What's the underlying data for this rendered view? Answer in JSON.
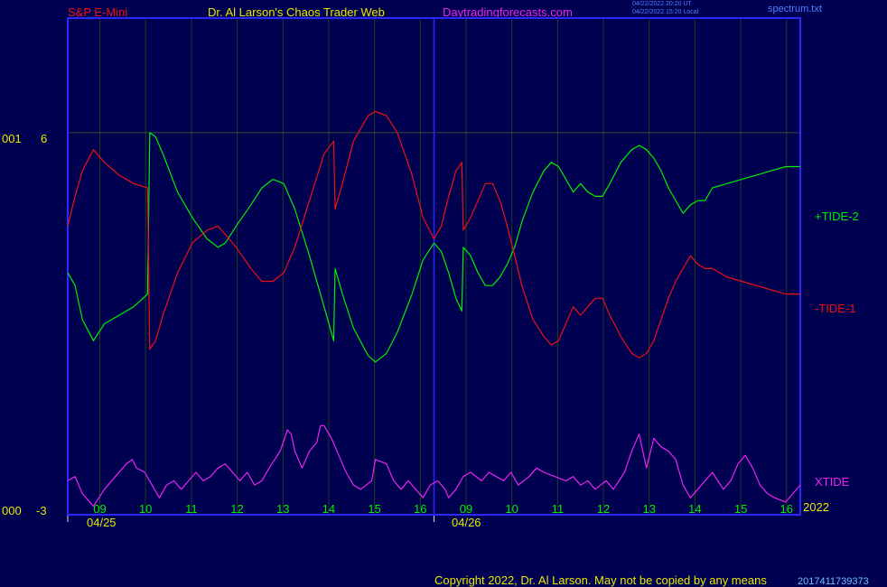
{
  "header": {
    "market": "S&P E-Mini",
    "author": "Dr. Al Larson's Chaos Trader Web",
    "site": "Daytradingforecasts.com",
    "stamp_ut": "04/22/2022 20:20 UT",
    "stamp_local": "04/22/2022 15:20 Local",
    "file": "spectrum.txt"
  },
  "footer": {
    "copyright": "Copyright 2022, Dr. Al Larson. May not be copied by any means",
    "code": "2017411739373"
  },
  "colors": {
    "background": "#000050",
    "frame": "#2828ff",
    "grid": "#1f3d1f",
    "tide2": "#00ee00",
    "tide1": "#ee1010",
    "xtide": "#ee22ee",
    "axis_text": "#e8e800"
  },
  "chart_data": {
    "type": "line",
    "y_axis": {
      "top_label": "6",
      "bottom_label": "-3",
      "left_top": "001",
      "left_bottom": "000",
      "ylim": [
        -3,
        8.7
      ]
    },
    "days": [
      {
        "label": "04/25"
      },
      {
        "label": "04/26"
      }
    ],
    "hour_ticks": [
      "09",
      "10",
      "11",
      "12",
      "13",
      "14",
      "15",
      "16",
      "09",
      "10",
      "11",
      "12",
      "13",
      "14",
      "15",
      "16"
    ],
    "year_label": "2022",
    "x_range": [
      0,
      100
    ],
    "grid": true,
    "series": [
      {
        "name": "+TIDE-2",
        "color": "#00ee00",
        "points": [
          [
            0,
            2.7
          ],
          [
            1,
            2.4
          ],
          [
            2,
            1.6
          ],
          [
            3.5,
            1.1
          ],
          [
            5,
            1.5
          ],
          [
            7,
            1.7
          ],
          [
            9,
            1.9
          ],
          [
            10.9,
            2.2
          ],
          [
            11.2,
            6
          ],
          [
            12,
            5.9
          ],
          [
            13,
            5.5
          ],
          [
            15,
            4.6
          ],
          [
            17,
            4
          ],
          [
            19,
            3.5
          ],
          [
            20.5,
            3.3
          ],
          [
            21.5,
            3.4
          ],
          [
            23,
            3.8
          ],
          [
            25,
            4.3
          ],
          [
            26.5,
            4.7
          ],
          [
            28,
            4.9
          ],
          [
            29.5,
            4.8
          ],
          [
            31,
            4.2
          ],
          [
            33,
            3.1
          ],
          [
            35,
            1.9
          ],
          [
            36.3,
            1.1
          ],
          [
            36.5,
            2.8
          ],
          [
            37.5,
            2.2
          ],
          [
            39,
            1.4
          ],
          [
            41,
            0.75
          ],
          [
            42,
            0.6
          ],
          [
            43.5,
            0.8
          ],
          [
            45,
            1.3
          ],
          [
            47,
            2.2
          ],
          [
            48.5,
            3
          ],
          [
            50,
            3.4
          ],
          [
            51,
            3.2
          ],
          [
            52,
            2.7
          ],
          [
            53,
            2.1
          ],
          [
            53.8,
            1.8
          ],
          [
            54,
            3.3
          ],
          [
            55,
            3.1
          ],
          [
            56,
            2.7
          ],
          [
            57,
            2.4
          ],
          [
            58,
            2.4
          ],
          [
            59,
            2.6
          ],
          [
            60,
            2.9
          ],
          [
            61,
            3.3
          ],
          [
            62,
            3.9
          ],
          [
            63.5,
            4.6
          ],
          [
            65,
            5.1
          ],
          [
            66,
            5.3
          ],
          [
            67,
            5.2
          ],
          [
            68,
            4.9
          ],
          [
            69,
            4.6
          ],
          [
            70,
            4.8
          ],
          [
            71,
            4.6
          ],
          [
            72,
            4.5
          ],
          [
            73,
            4.5
          ],
          [
            74,
            4.8
          ],
          [
            75.5,
            5.3
          ],
          [
            77,
            5.6
          ],
          [
            78,
            5.7
          ],
          [
            79,
            5.6
          ],
          [
            80,
            5.4
          ],
          [
            81,
            5.1
          ],
          [
            82,
            4.7
          ],
          [
            83,
            4.4
          ],
          [
            84,
            4.1
          ],
          [
            85,
            4.3
          ],
          [
            86,
            4.4
          ],
          [
            87,
            4.4
          ],
          [
            88,
            4.7
          ],
          [
            90,
            4.8
          ],
          [
            92,
            4.9
          ],
          [
            94,
            5
          ],
          [
            96,
            5.1
          ],
          [
            98,
            5.2
          ],
          [
            100,
            5.2
          ]
        ]
      },
      {
        "name": "-TIDE-1",
        "color": "#ee1010",
        "points": [
          [
            0,
            3.8
          ],
          [
            1,
            4.5
          ],
          [
            2,
            5.1
          ],
          [
            3.5,
            5.6
          ],
          [
            5,
            5.3
          ],
          [
            7,
            5
          ],
          [
            9,
            4.8
          ],
          [
            10.9,
            4.7
          ],
          [
            11.2,
            0.9
          ],
          [
            12,
            1.1
          ],
          [
            13,
            1.7
          ],
          [
            15,
            2.7
          ],
          [
            17,
            3.4
          ],
          [
            19,
            3.7
          ],
          [
            20.5,
            3.8
          ],
          [
            21.5,
            3.6
          ],
          [
            23,
            3.3
          ],
          [
            25,
            2.8
          ],
          [
            26.5,
            2.5
          ],
          [
            28,
            2.5
          ],
          [
            29.5,
            2.7
          ],
          [
            31,
            3.3
          ],
          [
            33,
            4.4
          ],
          [
            35,
            5.5
          ],
          [
            36.3,
            5.8
          ],
          [
            36.5,
            4.2
          ],
          [
            37.5,
            4.8
          ],
          [
            39,
            5.8
          ],
          [
            41,
            6.4
          ],
          [
            42,
            6.5
          ],
          [
            43.5,
            6.4
          ],
          [
            45,
            6
          ],
          [
            47,
            5
          ],
          [
            48.5,
            4
          ],
          [
            50,
            3.5
          ],
          [
            51,
            3.8
          ],
          [
            52,
            4.5
          ],
          [
            53,
            5.1
          ],
          [
            53.8,
            5.3
          ],
          [
            54,
            3.7
          ],
          [
            55,
            4
          ],
          [
            56,
            4.4
          ],
          [
            57,
            4.8
          ],
          [
            58,
            4.8
          ],
          [
            59,
            4.4
          ],
          [
            60,
            3.8
          ],
          [
            61,
            3.1
          ],
          [
            62,
            2.4
          ],
          [
            63.5,
            1.6
          ],
          [
            65,
            1.2
          ],
          [
            66,
            1
          ],
          [
            67,
            1.1
          ],
          [
            68,
            1.5
          ],
          [
            69,
            1.9
          ],
          [
            70,
            1.7
          ],
          [
            71,
            1.9
          ],
          [
            72,
            2.1
          ],
          [
            73,
            2.1
          ],
          [
            74,
            1.7
          ],
          [
            75.5,
            1.2
          ],
          [
            77,
            0.8
          ],
          [
            78,
            0.7
          ],
          [
            79,
            0.8
          ],
          [
            80,
            1.1
          ],
          [
            81,
            1.6
          ],
          [
            82,
            2.1
          ],
          [
            83,
            2.5
          ],
          [
            84,
            2.8
          ],
          [
            85,
            3.1
          ],
          [
            86,
            2.9
          ],
          [
            87,
            2.8
          ],
          [
            88,
            2.8
          ],
          [
            90,
            2.6
          ],
          [
            92,
            2.5
          ],
          [
            94,
            2.4
          ],
          [
            96,
            2.3
          ],
          [
            98,
            2.2
          ],
          [
            100,
            2.2
          ]
        ]
      },
      {
        "name": "XTIDE",
        "color": "#ee22ee",
        "points": [
          [
            0,
            -2.2
          ],
          [
            1,
            -2.1
          ],
          [
            2,
            -2.5
          ],
          [
            3.5,
            -2.8
          ],
          [
            5,
            -2.4
          ],
          [
            6.5,
            -2.1
          ],
          [
            8,
            -1.8
          ],
          [
            8.8,
            -1.7
          ],
          [
            9.4,
            -1.9
          ],
          [
            10.5,
            -2
          ],
          [
            11.5,
            -2.3
          ],
          [
            12.5,
            -2.6
          ],
          [
            13.5,
            -2.3
          ],
          [
            14.5,
            -2.2
          ],
          [
            15.5,
            -2.4
          ],
          [
            16.5,
            -2.2
          ],
          [
            17.5,
            -2
          ],
          [
            18.5,
            -2.2
          ],
          [
            19.5,
            -2.1
          ],
          [
            20.5,
            -1.9
          ],
          [
            21.5,
            -1.8
          ],
          [
            22.5,
            -2
          ],
          [
            23.5,
            -2.2
          ],
          [
            24.5,
            -2
          ],
          [
            25.5,
            -2.3
          ],
          [
            26.5,
            -2.2
          ],
          [
            27.5,
            -1.9
          ],
          [
            29,
            -1.5
          ],
          [
            30,
            -1
          ],
          [
            30.5,
            -1.1
          ],
          [
            31,
            -1.5
          ],
          [
            32,
            -1.9
          ],
          [
            33,
            -1.5
          ],
          [
            34,
            -1.3
          ],
          [
            34.5,
            -0.9
          ],
          [
            35,
            -0.9
          ],
          [
            36,
            -1.2
          ],
          [
            37,
            -1.6
          ],
          [
            38,
            -2
          ],
          [
            39,
            -2.3
          ],
          [
            40,
            -2.4
          ],
          [
            41.5,
            -2.2
          ],
          [
            42,
            -1.7
          ],
          [
            43.5,
            -1.8
          ],
          [
            44.5,
            -2.2
          ],
          [
            45.5,
            -2.4
          ],
          [
            46.5,
            -2.2
          ],
          [
            47.5,
            -2.4
          ],
          [
            48.5,
            -2.6
          ],
          [
            49.5,
            -2.3
          ],
          [
            50.5,
            -2.2
          ],
          [
            51.5,
            -2.4
          ],
          [
            52,
            -2.6
          ],
          [
            53,
            -2.4
          ],
          [
            54,
            -2.1
          ],
          [
            55,
            -2
          ],
          [
            56.5,
            -2.2
          ],
          [
            57.5,
            -2
          ],
          [
            58.5,
            -2.1
          ],
          [
            59.5,
            -2.2
          ],
          [
            60.5,
            -2
          ],
          [
            61.5,
            -2.3
          ],
          [
            63,
            -2.1
          ],
          [
            64,
            -1.9
          ],
          [
            65,
            -2
          ],
          [
            66.5,
            -2.1
          ],
          [
            68,
            -2.2
          ],
          [
            69,
            -2.1
          ],
          [
            70,
            -2.3
          ],
          [
            71,
            -2.2
          ],
          [
            72,
            -2.4
          ],
          [
            73.5,
            -2.2
          ],
          [
            74.5,
            -2.4
          ],
          [
            76,
            -2
          ],
          [
            77,
            -1.5
          ],
          [
            78,
            -1.1
          ],
          [
            79,
            -1.9
          ],
          [
            80,
            -1.2
          ],
          [
            81,
            -1.4
          ],
          [
            82,
            -1.5
          ],
          [
            83,
            -1.7
          ],
          [
            84,
            -2.3
          ],
          [
            85,
            -2.6
          ],
          [
            86,
            -2.4
          ],
          [
            87,
            -2.2
          ],
          [
            88,
            -2
          ],
          [
            89.5,
            -2.4
          ],
          [
            90.5,
            -2.2
          ],
          [
            91.5,
            -1.8
          ],
          [
            92.5,
            -1.6
          ],
          [
            93.5,
            -1.9
          ],
          [
            94.5,
            -2.3
          ],
          [
            95.5,
            -2.5
          ],
          [
            96.5,
            -2.6
          ],
          [
            98,
            -2.7
          ],
          [
            99,
            -2.5
          ],
          [
            100,
            -2.3
          ]
        ]
      }
    ]
  }
}
